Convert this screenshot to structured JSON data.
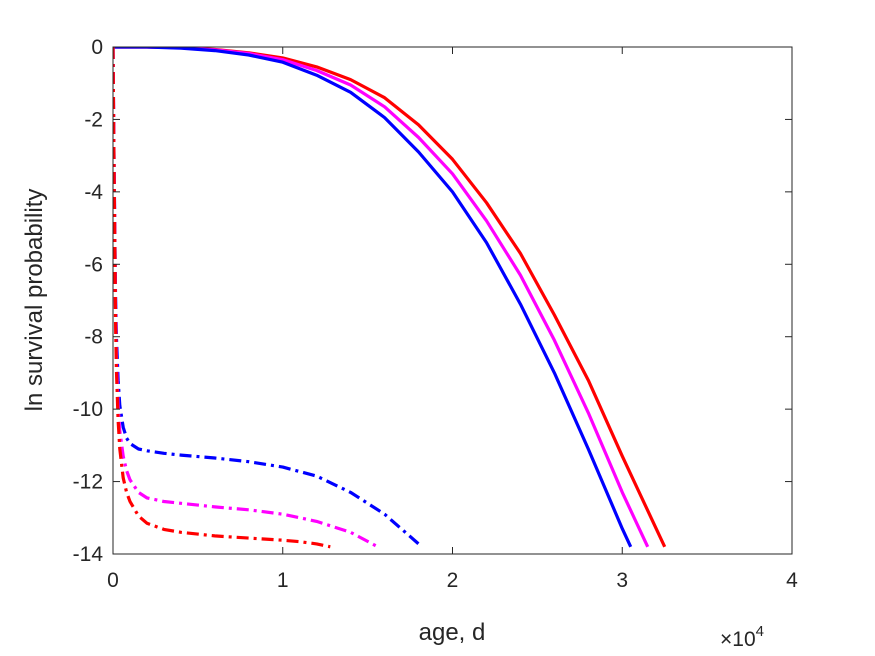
{
  "chart_data": {
    "type": "line",
    "title": "",
    "xlabel": "age, d",
    "ylabel": "ln survival probability",
    "x_exponent_label": "×10",
    "x_exponent_power": "4",
    "x_multiplier": 10000,
    "xlim": [
      0,
      40000
    ],
    "ylim": [
      -14,
      0
    ],
    "xticks": [
      0,
      1,
      2,
      3,
      4
    ],
    "xtick_labels": [
      "0",
      "1",
      "2",
      "3",
      "4"
    ],
    "yticks": [
      0,
      -2,
      -4,
      -6,
      -8,
      -10,
      -12,
      -14
    ],
    "ytick_labels": [
      "0",
      "-2",
      "-4",
      "-6",
      "-8",
      "-10",
      "-12",
      "-14"
    ],
    "grid": false,
    "legend": "none",
    "series": [
      {
        "color": "#ff0000",
        "style": "solid",
        "x": [
          0,
          2000,
          4000,
          6000,
          8000,
          10000,
          12000,
          14000,
          16000,
          18000,
          20000,
          22000,
          24000,
          26000,
          28000,
          30000,
          32000,
          32500
        ],
        "y": [
          0,
          0,
          -0.02,
          -0.07,
          -0.16,
          -0.3,
          -0.55,
          -0.9,
          -1.4,
          -2.15,
          -3.1,
          -4.3,
          -5.7,
          -7.4,
          -9.2,
          -11.3,
          -13.3,
          -13.8
        ]
      },
      {
        "color": "#ff00ff",
        "style": "solid",
        "x": [
          0,
          2000,
          4000,
          6000,
          8000,
          10000,
          12000,
          14000,
          16000,
          18000,
          20000,
          22000,
          24000,
          26000,
          28000,
          30000,
          31500
        ],
        "y": [
          0,
          0,
          -0.02,
          -0.08,
          -0.18,
          -0.35,
          -0.65,
          -1.05,
          -1.65,
          -2.5,
          -3.5,
          -4.8,
          -6.3,
          -8.1,
          -10.1,
          -12.3,
          -13.8
        ]
      },
      {
        "color": "#0000ff",
        "style": "solid",
        "x": [
          0,
          2000,
          4000,
          6000,
          8000,
          10000,
          12000,
          14000,
          16000,
          18000,
          20000,
          22000,
          24000,
          26000,
          28000,
          30000,
          30500
        ],
        "y": [
          0,
          0,
          -0.03,
          -0.1,
          -0.22,
          -0.42,
          -0.78,
          -1.25,
          -1.95,
          -2.9,
          -4.0,
          -5.4,
          -7.1,
          -9.0,
          -11.1,
          -13.3,
          -13.8
        ]
      },
      {
        "color": "#0000ff",
        "style": "dashdot",
        "x": [
          0,
          50,
          100,
          150,
          200,
          300,
          400,
          600,
          800,
          1000,
          1500,
          2000,
          3000,
          4000,
          6000,
          8000,
          10000,
          12000,
          14000,
          16000,
          18200
        ],
        "y": [
          0,
          -2.5,
          -4.8,
          -6.8,
          -8.0,
          -9.2,
          -9.9,
          -10.5,
          -10.8,
          -10.95,
          -11.1,
          -11.15,
          -11.22,
          -11.27,
          -11.35,
          -11.45,
          -11.6,
          -11.85,
          -12.3,
          -12.9,
          -13.8
        ]
      },
      {
        "color": "#ff00ff",
        "style": "dashdot",
        "x": [
          0,
          50,
          100,
          150,
          200,
          300,
          400,
          600,
          800,
          1000,
          1500,
          2000,
          3000,
          4000,
          6000,
          8000,
          10000,
          12000,
          14000,
          15600
        ],
        "y": [
          0,
          -2.6,
          -5.0,
          -7.2,
          -8.6,
          -9.9,
          -10.6,
          -11.3,
          -11.7,
          -11.95,
          -12.3,
          -12.45,
          -12.55,
          -12.6,
          -12.7,
          -12.78,
          -12.9,
          -13.1,
          -13.4,
          -13.8
        ]
      },
      {
        "color": "#ff0000",
        "style": "dashdot",
        "x": [
          0,
          50,
          100,
          150,
          200,
          300,
          400,
          600,
          800,
          1000,
          1500,
          2000,
          3000,
          4000,
          6000,
          8000,
          10000,
          11000,
          12000,
          12800
        ],
        "y": [
          0,
          -2.7,
          -5.2,
          -7.5,
          -8.9,
          -10.3,
          -11.1,
          -11.9,
          -12.3,
          -12.55,
          -12.95,
          -13.15,
          -13.32,
          -13.4,
          -13.5,
          -13.56,
          -13.62,
          -13.66,
          -13.72,
          -13.8
        ]
      }
    ]
  }
}
